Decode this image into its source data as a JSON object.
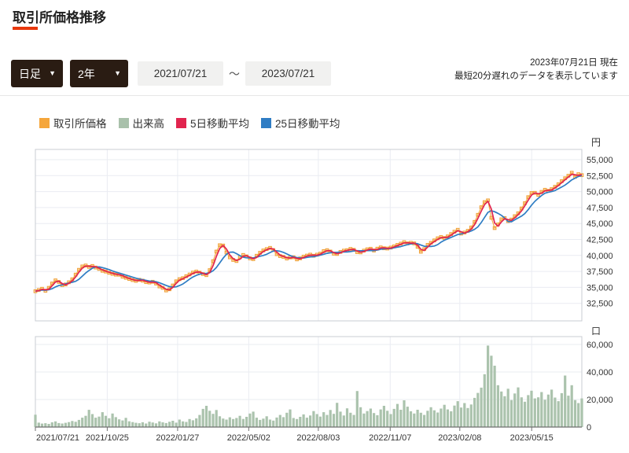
{
  "header": {
    "title": "取引所価格推移"
  },
  "meta": {
    "as_of": "2023年07月21日 現在",
    "delay_note": "最短20分遅れのデータを表示しています"
  },
  "controls": {
    "interval_value": "日足",
    "range_value": "2年",
    "date_from": "2021/07/21",
    "date_separator": "～",
    "date_to": "2023/07/21",
    "caret": "▼"
  },
  "colors": {
    "accent": "#e8380d",
    "control_bg": "#2a1c13",
    "grid": "#eaecf2",
    "border": "#c9ccd3",
    "axis_line": "#6f6f6f",
    "price": "#f0a23c",
    "price_line": "#f5ab47",
    "ma5": "#e1244e",
    "ma25": "#2f7dc4",
    "volume": "#abc3ad"
  },
  "legend": [
    {
      "label": "取引所価格",
      "color": "#f5a63b"
    },
    {
      "label": "出来高",
      "color": "#a9c1ab"
    },
    {
      "label": "5日移動平均",
      "color": "#e1244e"
    },
    {
      "label": "25日移動平均",
      "color": "#2f7dc4"
    }
  ],
  "chart_data": [
    {
      "type": "line",
      "title": "取引所価格推移（価格）",
      "unit": "円",
      "legend_position": "top",
      "grid": true,
      "x_range": [
        "2021/07/21",
        "2023/07/21"
      ],
      "total_days": 730,
      "sample_interval_days": 4.48,
      "x_ticks": [
        {
          "label": "2021/07/21",
          "day": 0
        },
        {
          "label": "2021/10/25",
          "day": 96
        },
        {
          "label": "2022/01/27",
          "day": 190
        },
        {
          "label": "2022/05/02",
          "day": 285
        },
        {
          "label": "2022/08/03",
          "day": 378
        },
        {
          "label": "2022/11/07",
          "day": 474
        },
        {
          "label": "2023/02/08",
          "day": 567
        },
        {
          "label": "2023/05/15",
          "day": 663
        }
      ],
      "yticks": [
        55000,
        52500,
        50000,
        47500,
        45000,
        42500,
        40000,
        37500,
        35000,
        32500
      ],
      "ylim": [
        29800,
        56600
      ],
      "series": [
        {
          "name": "取引所価格",
          "marker": "open-square",
          "values": [
            34400,
            34580,
            34780,
            34470,
            34920,
            35600,
            36100,
            35850,
            35350,
            35450,
            35800,
            36250,
            37000,
            37750,
            38280,
            38420,
            38200,
            38350,
            38100,
            37900,
            37600,
            37480,
            37280,
            37120,
            37000,
            36980,
            36680,
            36500,
            36320,
            36150,
            36020,
            36180,
            36060,
            35830,
            35760,
            35880,
            35600,
            35150,
            34920,
            34520,
            34700,
            35300,
            35950,
            36280,
            36440,
            36750,
            37020,
            37320,
            37480,
            37300,
            37080,
            36920,
            37700,
            39100,
            40600,
            41600,
            41550,
            40450,
            39700,
            39300,
            39120,
            39700,
            40080,
            39850,
            39550,
            39420,
            39950,
            40420,
            40780,
            41000,
            41180,
            40850,
            40200,
            39900,
            39780,
            39520,
            39680,
            39720,
            39380,
            39550,
            39820,
            39980,
            40120,
            39950,
            40120,
            40280,
            40680,
            40830,
            40620,
            40280,
            40230,
            40550,
            40750,
            40820,
            41020,
            40880,
            40520,
            40480,
            40750,
            40960,
            41050,
            40780,
            41060,
            41260,
            41120,
            41080,
            41230,
            41420,
            41650,
            41850,
            42080,
            41880,
            41980,
            41880,
            41350,
            40580,
            40980,
            41650,
            41980,
            42350,
            42680,
            42880,
            42730,
            42980,
            43350,
            43720,
            44020,
            43420,
            43580,
            43850,
            44380,
            45250,
            46350,
            47550,
            48350,
            48620,
            45900,
            44280,
            44850,
            45650,
            45850,
            45380,
            45620,
            46150,
            46600,
            47350,
            48180,
            49120,
            49780,
            49800,
            49500,
            49950,
            50280,
            50120,
            50380,
            50750,
            51150,
            51620,
            52080,
            52480,
            52950,
            52320,
            52720,
            52580
          ]
        },
        {
          "name": "5日移動平均",
          "derived": "trailing mean of 取引所価格, window 2 samples ≈ 5 days"
        },
        {
          "name": "25日移動平均",
          "derived": "trailing mean of 取引所価格, window 6 samples ≈ 25 days"
        }
      ],
      "ma5_window_samples": 2,
      "ma25_window_samples": 6
    },
    {
      "type": "bar",
      "title": "出来高",
      "unit": "口",
      "grid": true,
      "yticks": [
        60000,
        40000,
        20000,
        0
      ],
      "ylim": [
        0,
        67000
      ],
      "values": [
        9000,
        3200,
        2500,
        2800,
        2300,
        3400,
        4100,
        2900,
        2600,
        3100,
        3600,
        4400,
        3800,
        5200,
        6800,
        8200,
        12500,
        9400,
        6800,
        7600,
        10800,
        8200,
        6400,
        9800,
        7200,
        5600,
        4800,
        6700,
        4200,
        3600,
        3100,
        2800,
        3500,
        2600,
        3900,
        3300,
        2700,
        4100,
        3400,
        2900,
        3800,
        4600,
        3200,
        5400,
        4100,
        3700,
        5800,
        4900,
        6300,
        8800,
        13200,
        15400,
        11800,
        9600,
        12400,
        7800,
        6200,
        5400,
        7100,
        5800,
        6600,
        8200,
        5900,
        7400,
        9800,
        11200,
        6800,
        5200,
        6100,
        7800,
        5400,
        4700,
        6900,
        8800,
        7200,
        10400,
        12800,
        6600,
        5800,
        7400,
        9200,
        6800,
        8400,
        11600,
        9400,
        7600,
        10800,
        8800,
        12400,
        9600,
        17600,
        11200,
        8400,
        13600,
        10400,
        8800,
        26200,
        14400,
        9800,
        11600,
        13400,
        10200,
        8600,
        12800,
        15400,
        11800,
        9400,
        13200,
        16800,
        12600,
        19400,
        14800,
        11400,
        9800,
        12600,
        10400,
        8800,
        11800,
        14400,
        12200,
        10600,
        13400,
        16200,
        12800,
        11400,
        15600,
        18800,
        14200,
        17400,
        13800,
        16400,
        21200,
        24800,
        28600,
        38400,
        59200,
        51800,
        44600,
        30400,
        25800,
        22400,
        27800,
        19600,
        24400,
        28800,
        21600,
        18400,
        23200,
        26400,
        20800,
        21600,
        25400,
        19800,
        23600,
        27200,
        21400,
        18800,
        24600,
        37400,
        22800,
        30400,
        19600,
        17400,
        20800
      ]
    }
  ]
}
